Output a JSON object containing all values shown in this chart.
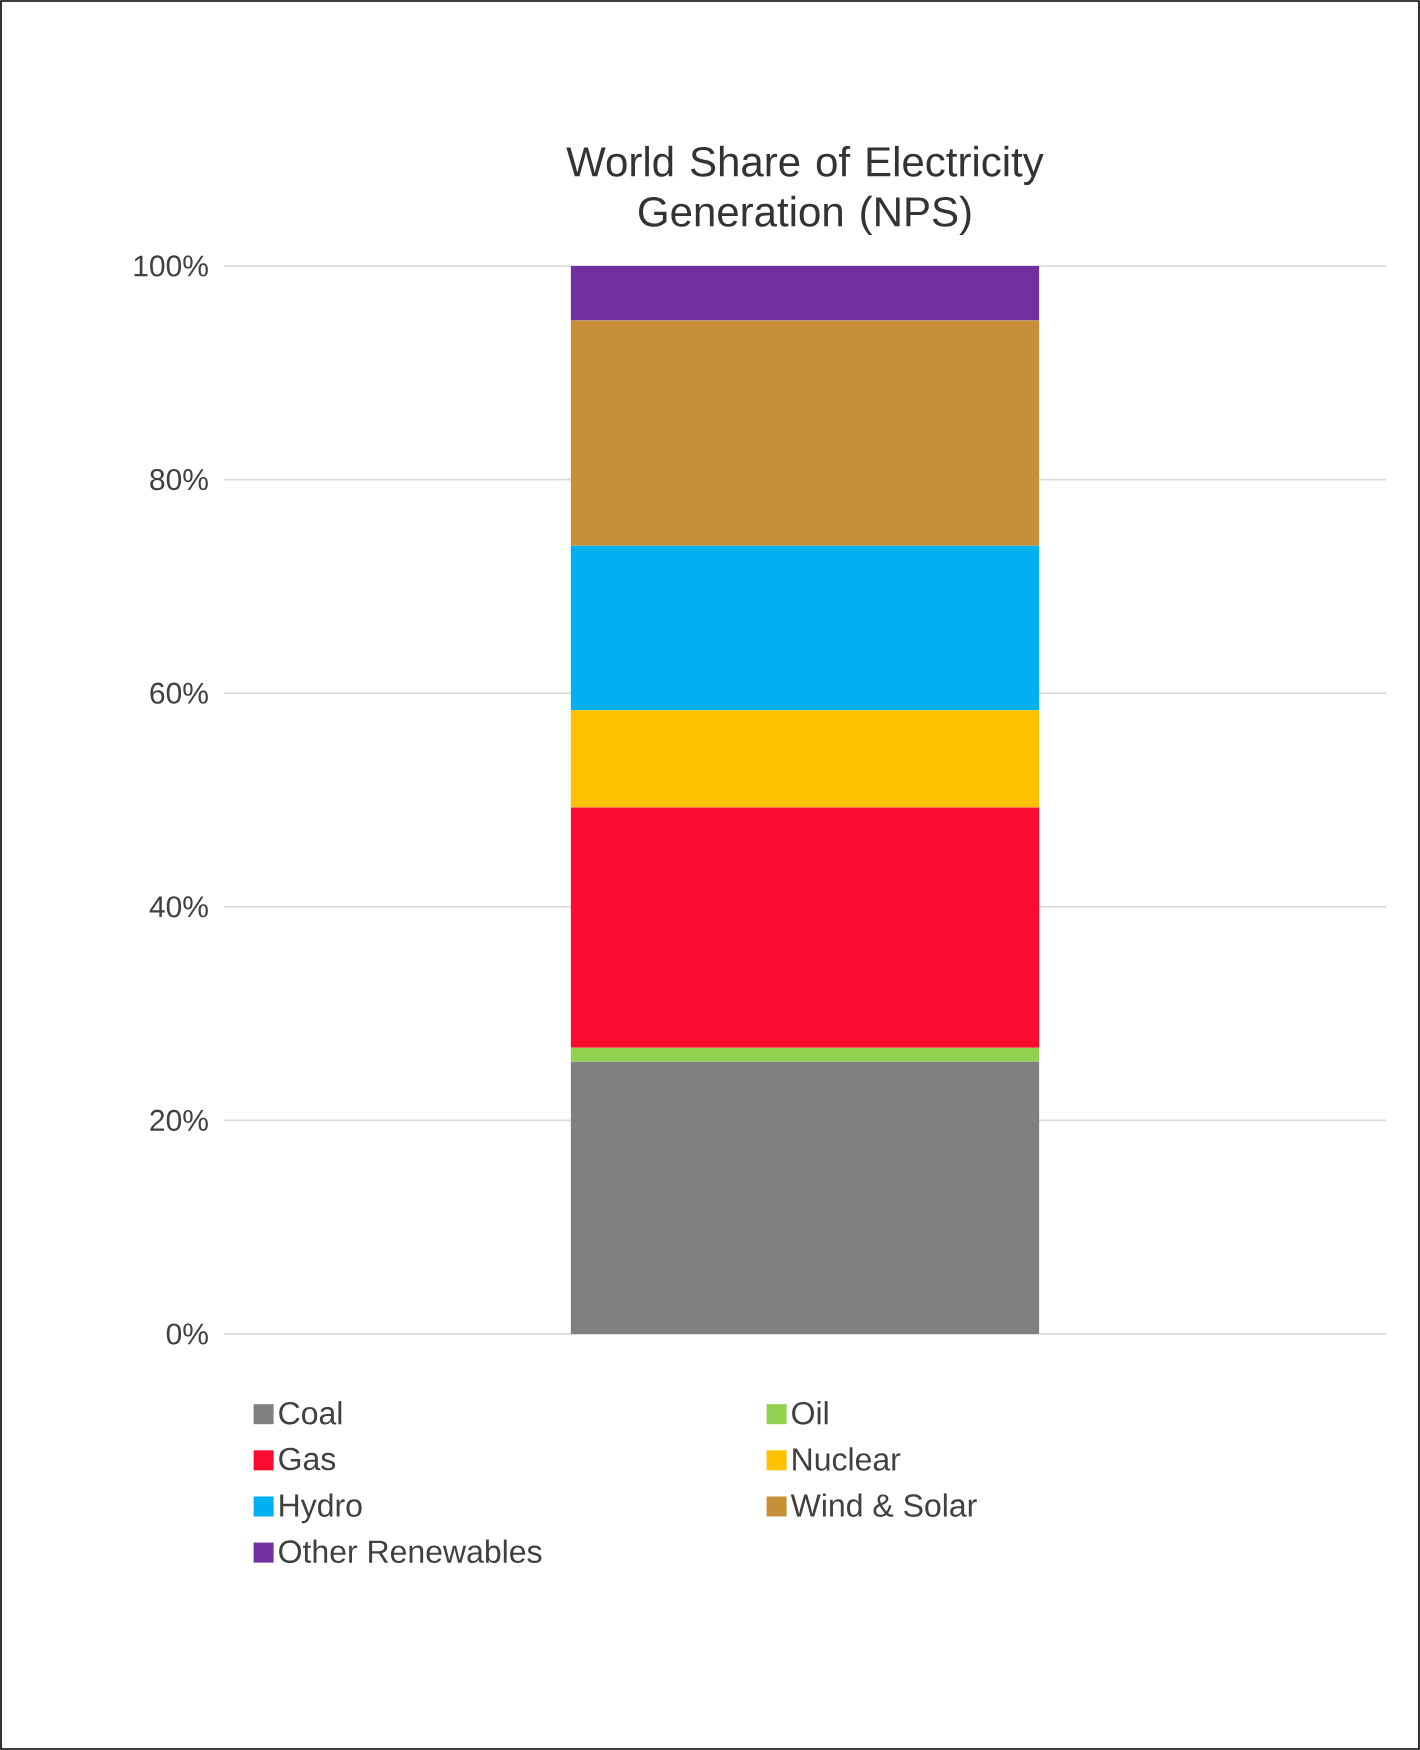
{
  "chart_data": {
    "type": "bar",
    "stacked": true,
    "title": "World Share of Electricity Generation (NPS)",
    "categories": [
      null
    ],
    "series": [
      {
        "name": "Coal",
        "color": "#808080",
        "values": [
          25.5
        ]
      },
      {
        "name": "Oil",
        "color": "#92d050",
        "values": [
          1.3
        ]
      },
      {
        "name": "Gas",
        "color": "#fa0c30",
        "values": [
          22.5
        ]
      },
      {
        "name": "Nuclear",
        "color": "#ffc000",
        "values": [
          9.1
        ]
      },
      {
        "name": "Hydro",
        "color": "#00b0f0",
        "values": [
          15.4
        ]
      },
      {
        "name": "Wind & Solar",
        "color": "#c78f37",
        "values": [
          21.1
        ]
      },
      {
        "name": "Other Renewables",
        "color": "#7030a0",
        "values": [
          5.1
        ]
      }
    ],
    "ylim": [
      0,
      100
    ],
    "yticks": [
      {
        "value": 0,
        "label": "0%"
      },
      {
        "value": 20,
        "label": "20%"
      },
      {
        "value": 40,
        "label": "40%"
      },
      {
        "value": 60,
        "label": "60%"
      },
      {
        "value": 80,
        "label": "80%"
      },
      {
        "value": 100,
        "label": "100%"
      }
    ],
    "grid": "y",
    "legend": "bottom"
  }
}
